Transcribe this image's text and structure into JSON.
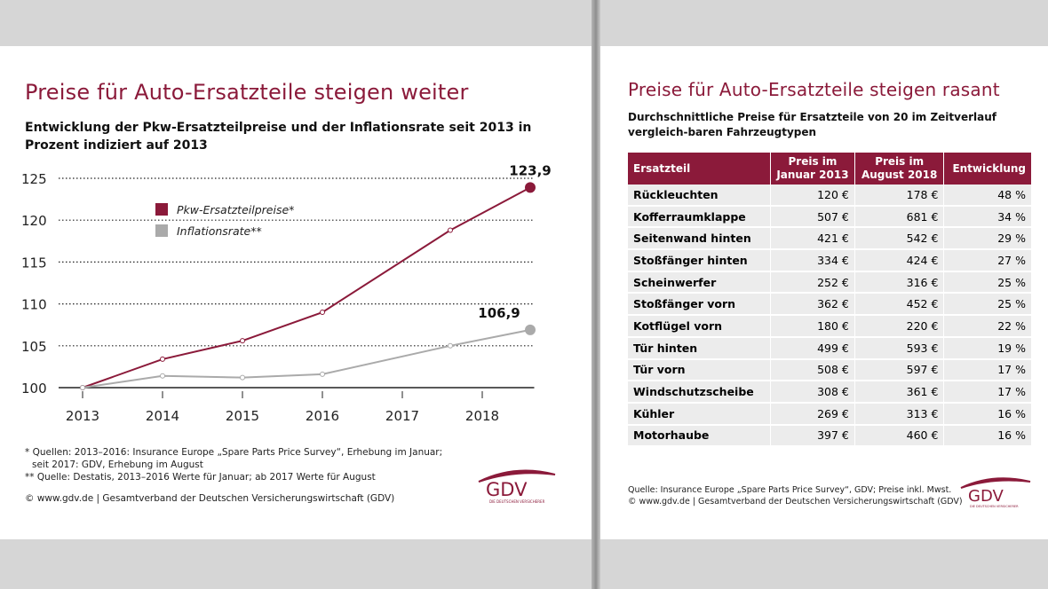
{
  "chart_data": {
    "type": "line",
    "title": "Preise für Auto-Ersatzteile steigen weiter",
    "subtitle": "Entwicklung der Pkw-Ersatzteilpreise und der Inflationsrate seit 2013 in Prozent indiziert auf 2013",
    "x": [
      2013,
      2014,
      2015,
      2016,
      2017.6,
      2018.6
    ],
    "series": [
      {
        "name": "Pkw-Ersatzteilpreise*",
        "color": "#8b1a3a",
        "values": [
          100,
          103.4,
          105.6,
          109.0,
          118.8,
          123.9
        ],
        "value_labels": [
          null,
          null,
          null,
          null,
          null,
          "123,9"
        ]
      },
      {
        "name": "Inflationsrate**",
        "color": "#aaaaaa",
        "values": [
          100,
          101.4,
          101.2,
          101.6,
          105.0,
          106.9
        ],
        "value_labels": [
          null,
          null,
          null,
          null,
          null,
          "106,9"
        ]
      }
    ],
    "xlim": [
      2012.7,
      2018.65
    ],
    "xticks": [
      2013,
      2014,
      2015,
      2016,
      2017,
      2018
    ],
    "ylim": [
      100,
      125
    ],
    "yticks": [
      100,
      105,
      110,
      115,
      120,
      125
    ],
    "grid": true,
    "footnotes": [
      "* Quellen: 2013–2016: Insurance Europe „Spare Parts Price Survey“, Erhebung im Januar;",
      "seit 2017: GDV, Erhebung im August",
      "** Quelle: Destatis, 2013–2016 Werte für Januar; ab 2017 Werte für August"
    ],
    "copyright": "© www.gdv.de | Gesamtverband der Deutschen Versicherungswirtschaft (GDV)",
    "logo": {
      "name": "GDV",
      "tagline": "DIE DEUTSCHEN VERSICHERER"
    }
  },
  "table_panel": {
    "title": "Preise für Auto-Ersatzteile steigen rasant",
    "subtitle": "Durchschnittliche Preise für Ersatzteile von 20 im Zeitverlauf vergleich-baren Fahrzeugtypen",
    "table": {
      "header": [
        "Ersatzteil",
        "Preis im Januar 2013",
        "Preis im August 2018",
        "Entwicklung"
      ],
      "rows": [
        [
          "Rückleuchten",
          "120 €",
          "178 €",
          "48 %"
        ],
        [
          "Kofferraumklappe",
          "507 €",
          "681 €",
          "34 %"
        ],
        [
          "Seitenwand hinten",
          "421 €",
          "542 €",
          "29 %"
        ],
        [
          "Stoßfänger hinten",
          "334 €",
          "424 €",
          "27 %"
        ],
        [
          "Scheinwerfer",
          "252 €",
          "316 €",
          "25 %"
        ],
        [
          "Stoßfänger vorn",
          "362 €",
          "452 €",
          "25 %"
        ],
        [
          "Kotflügel vorn",
          "180 €",
          "220 €",
          "22 %"
        ],
        [
          "Tür hinten",
          "499 €",
          "593 €",
          "19 %"
        ],
        [
          "Tür vorn",
          "508 €",
          "597 €",
          "17 %"
        ],
        [
          "Windschutzscheibe",
          "308 €",
          "361 €",
          "17 %"
        ],
        [
          "Kühler",
          "269 €",
          "313 €",
          "16 %"
        ],
        [
          "Motorhaube",
          "397 €",
          "460 €",
          "16 %"
        ]
      ]
    },
    "source": "Quelle: Insurance Europe „Spare Parts Price Survey“, GDV; Preise inkl. Mwst.",
    "copyright": "© www.gdv.de | Gesamtverband der Deutschen Versicherungswirtschaft (GDV)",
    "logo": {
      "name": "GDV",
      "tagline": "DIE DEUTSCHEN VERSICHERER"
    }
  }
}
